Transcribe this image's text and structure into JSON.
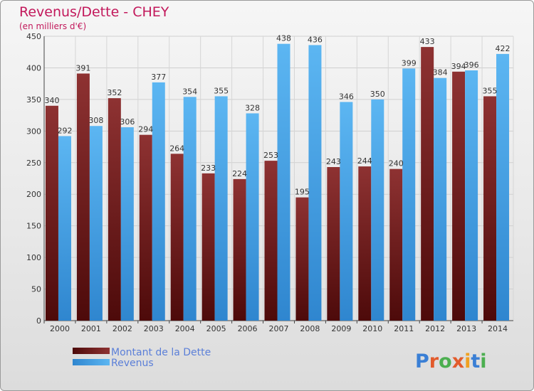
{
  "chart_data": {
    "type": "bar",
    "title": "Revenus/Dette - CHEY",
    "subtitle": "(en milliers d'€)",
    "categories": [
      "2000",
      "2001",
      "2002",
      "2003",
      "2004",
      "2005",
      "2006",
      "2007",
      "2008",
      "2009",
      "2010",
      "2011",
      "2012",
      "2013",
      "2014"
    ],
    "series": [
      {
        "name": "Montant de la Dette",
        "color": "#7a1f1f",
        "values": [
          340,
          391,
          352,
          294,
          264,
          233,
          224,
          253,
          195,
          243,
          244,
          240,
          433,
          394,
          355
        ]
      },
      {
        "name": "Revenus",
        "color": "#4aa3e6",
        "values": [
          292,
          308,
          306,
          377,
          354,
          355,
          328,
          438,
          436,
          346,
          350,
          399,
          384,
          396,
          422
        ]
      }
    ],
    "ylim": [
      0,
      450
    ],
    "yticks": [
      0,
      50,
      100,
      150,
      200,
      250,
      300,
      350,
      400,
      450
    ],
    "grid": true,
    "legend_position": "bottom-left"
  },
  "logo": {
    "text": "Proxiti",
    "letter_colors": [
      "#3a7fd5",
      "#e25b2c",
      "#4caf50",
      "#e25b2c",
      "#f0a020",
      "#3a7fd5",
      "#4caf50"
    ]
  }
}
